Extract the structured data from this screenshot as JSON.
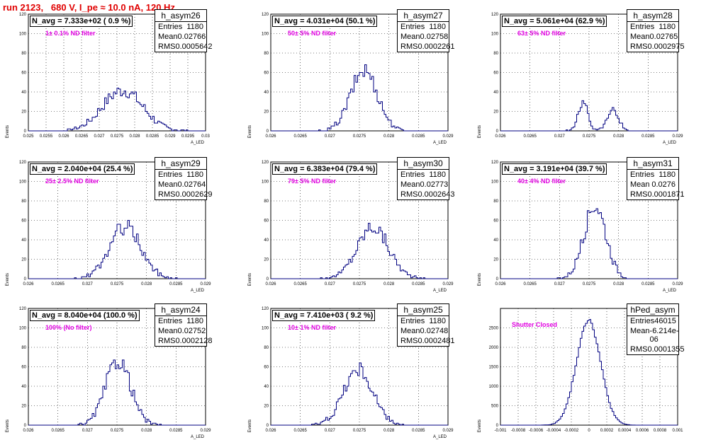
{
  "run_title": "run 2123,   680 V, I_pe ≈ 10.0 nA, 120 Hz",
  "colors": {
    "title": "#e00000",
    "histogram": "#000080",
    "annotation": "#e000e0",
    "grid": "#000000"
  },
  "chart_data": [
    {
      "type": "histogram",
      "name": "h_asym26",
      "nbox": "N_avg = 7.333e+02 ( 0.9 %)",
      "filter": "1± 0.1% ND filter",
      "ylabel": "Events",
      "xlabel": "A_LED",
      "xlim": [
        0.025,
        0.03
      ],
      "ylim": [
        0,
        120
      ],
      "xticks": [
        "0.025",
        "0.0255",
        "0.026",
        "0.0265",
        "0.027",
        "0.0275",
        "0.028",
        "0.0285",
        "0.029",
        "0.0295",
        "0.03"
      ],
      "yticks": [
        "0",
        "20",
        "40",
        "60",
        "80",
        "100",
        "120"
      ],
      "stats": {
        "entries": "1180",
        "mean": "0.02766",
        "rms": "0.0005642"
      }
    },
    {
      "type": "histogram",
      "name": "h_asym27",
      "nbox": "N_avg = 4.031e+04 (50.1 %)",
      "filter": "50± 5% ND filter",
      "ylabel": "Events",
      "xlabel": "A_LED",
      "xlim": [
        0.026,
        0.029
      ],
      "ylim": [
        0,
        120
      ],
      "xticks": [
        "0.026",
        "0.0265",
        "0.027",
        "0.0275",
        "0.028",
        "0.0285",
        "0.029"
      ],
      "yticks": [
        "0",
        "20",
        "40",
        "60",
        "80",
        "100",
        "120"
      ],
      "stats": {
        "entries": "1180",
        "mean": "0.02758",
        "rms": "0.0002261"
      }
    },
    {
      "type": "histogram",
      "name": "h_asym28",
      "nbox": "N_avg = 5.061e+04 (62.9 %)",
      "filter": "63± 5% ND filter",
      "ylabel": "Events",
      "xlabel": "A_LED",
      "xlim": [
        0.026,
        0.029
      ],
      "ylim": [
        0,
        120
      ],
      "xticks": [
        "0.026",
        "0.0265",
        "0.027",
        "0.0275",
        "0.028",
        "0.0285",
        "0.029"
      ],
      "yticks": [
        "0",
        "20",
        "40",
        "60",
        "80",
        "100",
        "120"
      ],
      "stats": {
        "entries": "1180",
        "mean": "0.02765",
        "rms": "0.0002975"
      }
    },
    {
      "type": "histogram",
      "name": "h_asym29",
      "nbox": "N_avg = 2.040e+04 (25.4 %)",
      "filter": "25± 2.5% ND filter",
      "ylabel": "Events",
      "xlabel": "A_LED",
      "xlim": [
        0.026,
        0.029
      ],
      "ylim": [
        0,
        120
      ],
      "xticks": [
        "0.026",
        "0.0265",
        "0.027",
        "0.0275",
        "0.028",
        "0.0285",
        "0.029"
      ],
      "yticks": [
        "0",
        "20",
        "40",
        "60",
        "80",
        "100",
        "120"
      ],
      "stats": {
        "entries": "1180",
        "mean": "0.02764",
        "rms": "0.0002629"
      }
    },
    {
      "type": "histogram",
      "name": "h_asym30",
      "nbox": "N_avg = 6.383e+04 (79.4 %)",
      "filter": "79± 5% ND filter",
      "ylabel": "Events",
      "xlabel": "A_LED",
      "xlim": [
        0.026,
        0.029
      ],
      "ylim": [
        0,
        120
      ],
      "xticks": [
        "0.026",
        "0.0265",
        "0.027",
        "0.0275",
        "0.028",
        "0.0285",
        "0.029"
      ],
      "yticks": [
        "0",
        "20",
        "40",
        "60",
        "80",
        "100",
        "120"
      ],
      "stats": {
        "entries": "1180",
        "mean": "0.02773",
        "rms": "0.0002643"
      }
    },
    {
      "type": "histogram",
      "name": "h_asym31",
      "nbox": "N_avg = 3.191e+04 (39.7 %)",
      "filter": "40± 4% ND filter",
      "ylabel": "Events",
      "xlabel": "A_LED",
      "xlim": [
        0.026,
        0.029
      ],
      "ylim": [
        0,
        120
      ],
      "xticks": [
        "0.026",
        "0.0265",
        "0.027",
        "0.0275",
        "0.028",
        "0.0285",
        "0.029"
      ],
      "yticks": [
        "0",
        "20",
        "40",
        "60",
        "80",
        "100",
        "120"
      ],
      "stats": {
        "entries": "1180",
        "mean": "0.0276",
        "rms": "0.0001871"
      }
    },
    {
      "type": "histogram",
      "name": "h_asym24",
      "nbox": "N_avg = 8.040e+04 (100.0 %)",
      "filter": "100% (No filter)",
      "ylabel": "Events",
      "xlabel": "A_LED",
      "xlim": [
        0.026,
        0.029
      ],
      "ylim": [
        0,
        120
      ],
      "xticks": [
        "0.026",
        "0.0265",
        "0.027",
        "0.0275",
        "0.028",
        "0.0285",
        "0.029"
      ],
      "yticks": [
        "0",
        "20",
        "40",
        "60",
        "80",
        "100",
        "120"
      ],
      "stats": {
        "entries": "1180",
        "mean": "0.02752",
        "rms": "0.0002128"
      }
    },
    {
      "type": "histogram",
      "name": "h_asym25",
      "nbox": "N_avg = 7.410e+03 ( 9.2 %)",
      "filter": "10± 1% ND filter",
      "ylabel": "Events",
      "xlabel": "A_LED",
      "xlim": [
        0.026,
        0.029
      ],
      "ylim": [
        0,
        120
      ],
      "xticks": [
        "0.026",
        "0.0265",
        "0.027",
        "0.0275",
        "0.028",
        "0.0285",
        "0.029"
      ],
      "yticks": [
        "0",
        "20",
        "40",
        "60",
        "80",
        "100",
        "120"
      ],
      "stats": {
        "entries": "1180",
        "mean": "0.02748",
        "rms": "0.0002481"
      }
    },
    {
      "type": "histogram",
      "name": "hPed_asym",
      "nbox": "",
      "filter": "Shutter Closed",
      "ylabel": "Events",
      "xlabel": "",
      "xlim": [
        -0.001,
        0.001
      ],
      "ylim": [
        0,
        3000
      ],
      "xticks": [
        "-0.001",
        "-0.0008",
        "-0.0006",
        "-0.0004",
        "-0.0002",
        "0",
        "0.0002",
        "0.0004",
        "0.0006",
        "0.0008",
        "0.001"
      ],
      "yticks": [
        "0",
        "500",
        "1000",
        "1500",
        "2000",
        "2500"
      ],
      "stats": {
        "entries": "46015",
        "mean": "-6.214e-06",
        "rms": "0.0001355"
      }
    }
  ]
}
